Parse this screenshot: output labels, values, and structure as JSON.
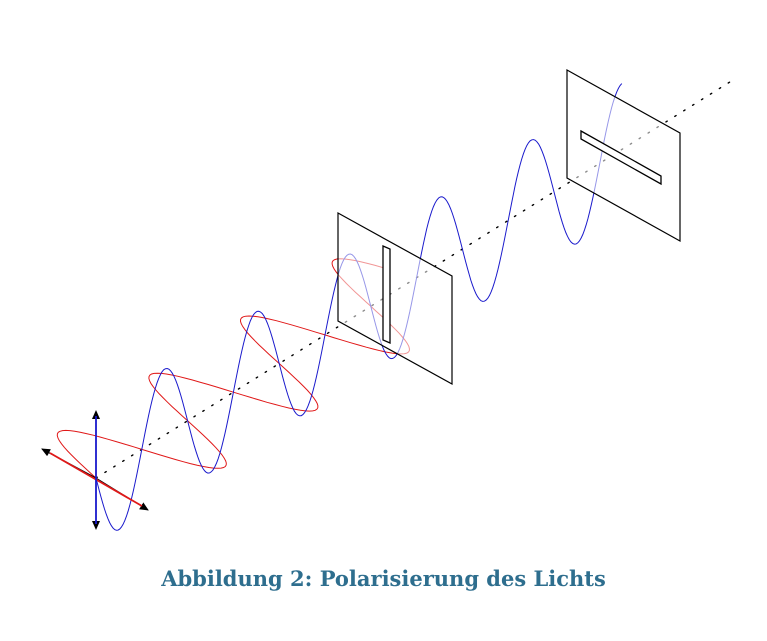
{
  "figure": {
    "caption": "Abbildung 2: Polarisierung des Lichts",
    "colors": {
      "wave_vertical": "#1a1acc",
      "wave_horizontal": "#e01818",
      "frame": "#000000",
      "caption": "#2e6e8e"
    },
    "icons": [
      "polarizer-filter-vertical-slit",
      "analyzer-filter-horizontal-slit",
      "double-arrow-icon"
    ]
  }
}
